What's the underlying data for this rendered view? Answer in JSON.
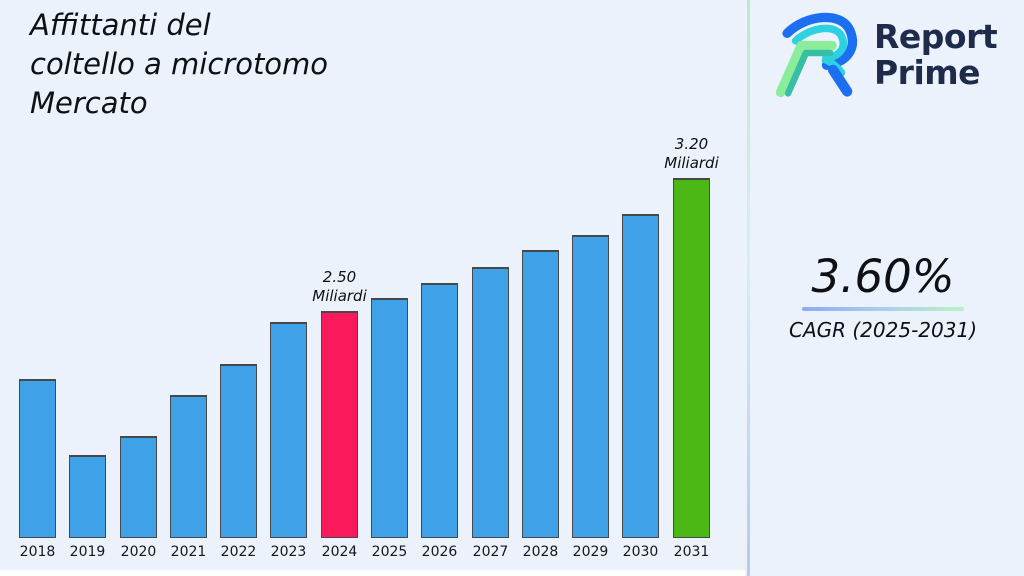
{
  "page": {
    "background": "#EBF2FC"
  },
  "title": "Affittanti del\ncoltello a microtomo\nMercato",
  "logo": {
    "line1": "Report",
    "line2": "Prime"
  },
  "cagr": {
    "value": "3.60%",
    "label": "CAGR (2025-2031)"
  },
  "chart_data": {
    "type": "bar",
    "title": "Affittanti del coltello a microtomo Mercato",
    "unit": "Miliardi",
    "categories": [
      "2018",
      "2019",
      "2020",
      "2021",
      "2022",
      "2023",
      "2024",
      "2025",
      "2026",
      "2027",
      "2028",
      "2029",
      "2030",
      "2031"
    ],
    "values": [
      2.14,
      1.74,
      1.84,
      2.06,
      2.22,
      2.44,
      2.5,
      2.57,
      2.65,
      2.73,
      2.82,
      2.9,
      3.01,
      3.2
    ],
    "value_labels": {
      "2024": "2.50\nMiliardi",
      "2031": "3.20\nMiliardi"
    },
    "colors": {
      "default": "#3FA1E8",
      "2024": "#FA1A5C",
      "2031": "#4CB815"
    },
    "bar_border_color": "#47484A",
    "xlabel": "",
    "ylabel": "",
    "ylim": [
      1.31,
      3.3
    ],
    "grid": false,
    "legend": false
  }
}
